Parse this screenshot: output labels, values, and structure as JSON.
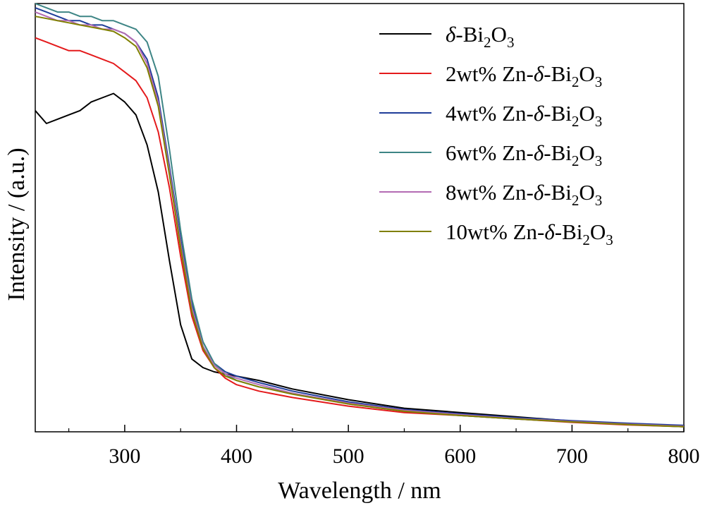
{
  "chart_data": {
    "type": "line",
    "title": "",
    "xlabel": "Wavelength / nm",
    "ylabel": "Intensity / (a.u.)",
    "xlim": [
      220,
      800
    ],
    "ylim": [
      0,
      1.0
    ],
    "xticks": [
      300,
      400,
      500,
      600,
      700,
      800
    ],
    "yticks": [],
    "grid": false,
    "legend_position": "top-right",
    "series": [
      {
        "name": "δ-Bi2O3",
        "legend": {
          "pre": "",
          "italic": "δ",
          "post": "-Bi",
          "s1": "2",
          "mid": "O",
          "s2": "3"
        },
        "color": "#000000",
        "x": [
          220,
          230,
          240,
          250,
          260,
          270,
          280,
          290,
          300,
          310,
          320,
          330,
          340,
          350,
          360,
          370,
          380,
          390,
          400,
          420,
          450,
          500,
          550,
          600,
          650,
          700,
          750,
          800
        ],
        "y": [
          0.75,
          0.72,
          0.73,
          0.74,
          0.75,
          0.77,
          0.78,
          0.79,
          0.77,
          0.74,
          0.67,
          0.56,
          0.4,
          0.25,
          0.17,
          0.15,
          0.14,
          0.135,
          0.13,
          0.12,
          0.1,
          0.075,
          0.055,
          0.045,
          0.035,
          0.025,
          0.018,
          0.012
        ]
      },
      {
        "name": "2wt% Zn-δ-Bi2O3",
        "legend": {
          "pre": "2wt% Zn-",
          "italic": "δ",
          "post": "-Bi",
          "s1": "2",
          "mid": "O",
          "s2": "3"
        },
        "color": "#e41a1c",
        "x": [
          220,
          230,
          240,
          250,
          260,
          270,
          280,
          290,
          300,
          310,
          320,
          330,
          340,
          350,
          360,
          370,
          380,
          390,
          400,
          420,
          450,
          500,
          550,
          600,
          650,
          700,
          750,
          800
        ],
        "y": [
          0.92,
          0.91,
          0.9,
          0.89,
          0.89,
          0.88,
          0.87,
          0.86,
          0.84,
          0.82,
          0.78,
          0.7,
          0.57,
          0.41,
          0.27,
          0.19,
          0.15,
          0.125,
          0.11,
          0.095,
          0.08,
          0.06,
          0.045,
          0.038,
          0.03,
          0.022,
          0.016,
          0.012
        ]
      },
      {
        "name": "4wt% Zn-δ-Bi2O3",
        "legend": {
          "pre": "4wt% Zn-",
          "italic": "δ",
          "post": "-Bi",
          "s1": "2",
          "mid": "O",
          "s2": "3"
        },
        "color": "#1f3d99",
        "x": [
          220,
          230,
          240,
          250,
          260,
          270,
          280,
          290,
          300,
          310,
          320,
          330,
          340,
          350,
          360,
          370,
          380,
          390,
          400,
          420,
          450,
          500,
          550,
          600,
          650,
          700,
          750,
          800
        ],
        "y": [
          0.99,
          0.98,
          0.97,
          0.96,
          0.96,
          0.95,
          0.95,
          0.94,
          0.93,
          0.91,
          0.87,
          0.78,
          0.62,
          0.45,
          0.3,
          0.21,
          0.16,
          0.14,
          0.13,
          0.115,
          0.095,
          0.07,
          0.052,
          0.042,
          0.033,
          0.026,
          0.02,
          0.015
        ]
      },
      {
        "name": "6wt% Zn-δ-Bi2O3",
        "legend": {
          "pre": "6wt% Zn-",
          "italic": "δ",
          "post": "-Bi",
          "s1": "2",
          "mid": "O",
          "s2": "3"
        },
        "color": "#3d8585",
        "x": [
          220,
          230,
          240,
          250,
          260,
          270,
          280,
          290,
          300,
          310,
          320,
          330,
          340,
          350,
          360,
          370,
          380,
          390,
          400,
          420,
          450,
          500,
          550,
          600,
          650,
          700,
          750,
          800
        ],
        "y": [
          1.0,
          0.99,
          0.98,
          0.98,
          0.97,
          0.97,
          0.96,
          0.96,
          0.95,
          0.94,
          0.91,
          0.83,
          0.66,
          0.47,
          0.31,
          0.21,
          0.16,
          0.135,
          0.12,
          0.105,
          0.09,
          0.065,
          0.048,
          0.038,
          0.03,
          0.023,
          0.017,
          0.012
        ]
      },
      {
        "name": "8wt% Zn-δ-Bi2O3",
        "legend": {
          "pre": "8wt% Zn-",
          "italic": "δ",
          "post": "-Bi",
          "s1": "2",
          "mid": "O",
          "s2": "3"
        },
        "color": "#b36bb3",
        "x": [
          220,
          230,
          240,
          250,
          260,
          270,
          280,
          290,
          300,
          310,
          320,
          330,
          340,
          350,
          360,
          370,
          380,
          390,
          400,
          420,
          450,
          500,
          550,
          600,
          650,
          700,
          750,
          800
        ],
        "y": [
          0.98,
          0.97,
          0.96,
          0.96,
          0.95,
          0.95,
          0.94,
          0.94,
          0.93,
          0.91,
          0.86,
          0.77,
          0.61,
          0.44,
          0.29,
          0.2,
          0.155,
          0.135,
          0.125,
          0.11,
          0.09,
          0.067,
          0.05,
          0.04,
          0.031,
          0.024,
          0.018,
          0.013
        ]
      },
      {
        "name": "10wt% Zn-δ-Bi2O3",
        "legend": {
          "pre": "10wt% Zn-",
          "italic": "δ",
          "post": "-Bi",
          "s1": "2",
          "mid": "O",
          "s2": "3"
        },
        "color": "#808000",
        "x": [
          220,
          230,
          240,
          250,
          260,
          270,
          280,
          290,
          300,
          310,
          320,
          330,
          340,
          350,
          360,
          370,
          380,
          390,
          400,
          420,
          450,
          500,
          550,
          600,
          650,
          700,
          750,
          800
        ],
        "y": [
          0.97,
          0.965,
          0.96,
          0.955,
          0.95,
          0.945,
          0.94,
          0.935,
          0.92,
          0.9,
          0.85,
          0.76,
          0.6,
          0.43,
          0.28,
          0.195,
          0.15,
          0.13,
          0.12,
          0.105,
          0.088,
          0.065,
          0.048,
          0.038,
          0.03,
          0.023,
          0.017,
          0.012
        ]
      }
    ]
  }
}
